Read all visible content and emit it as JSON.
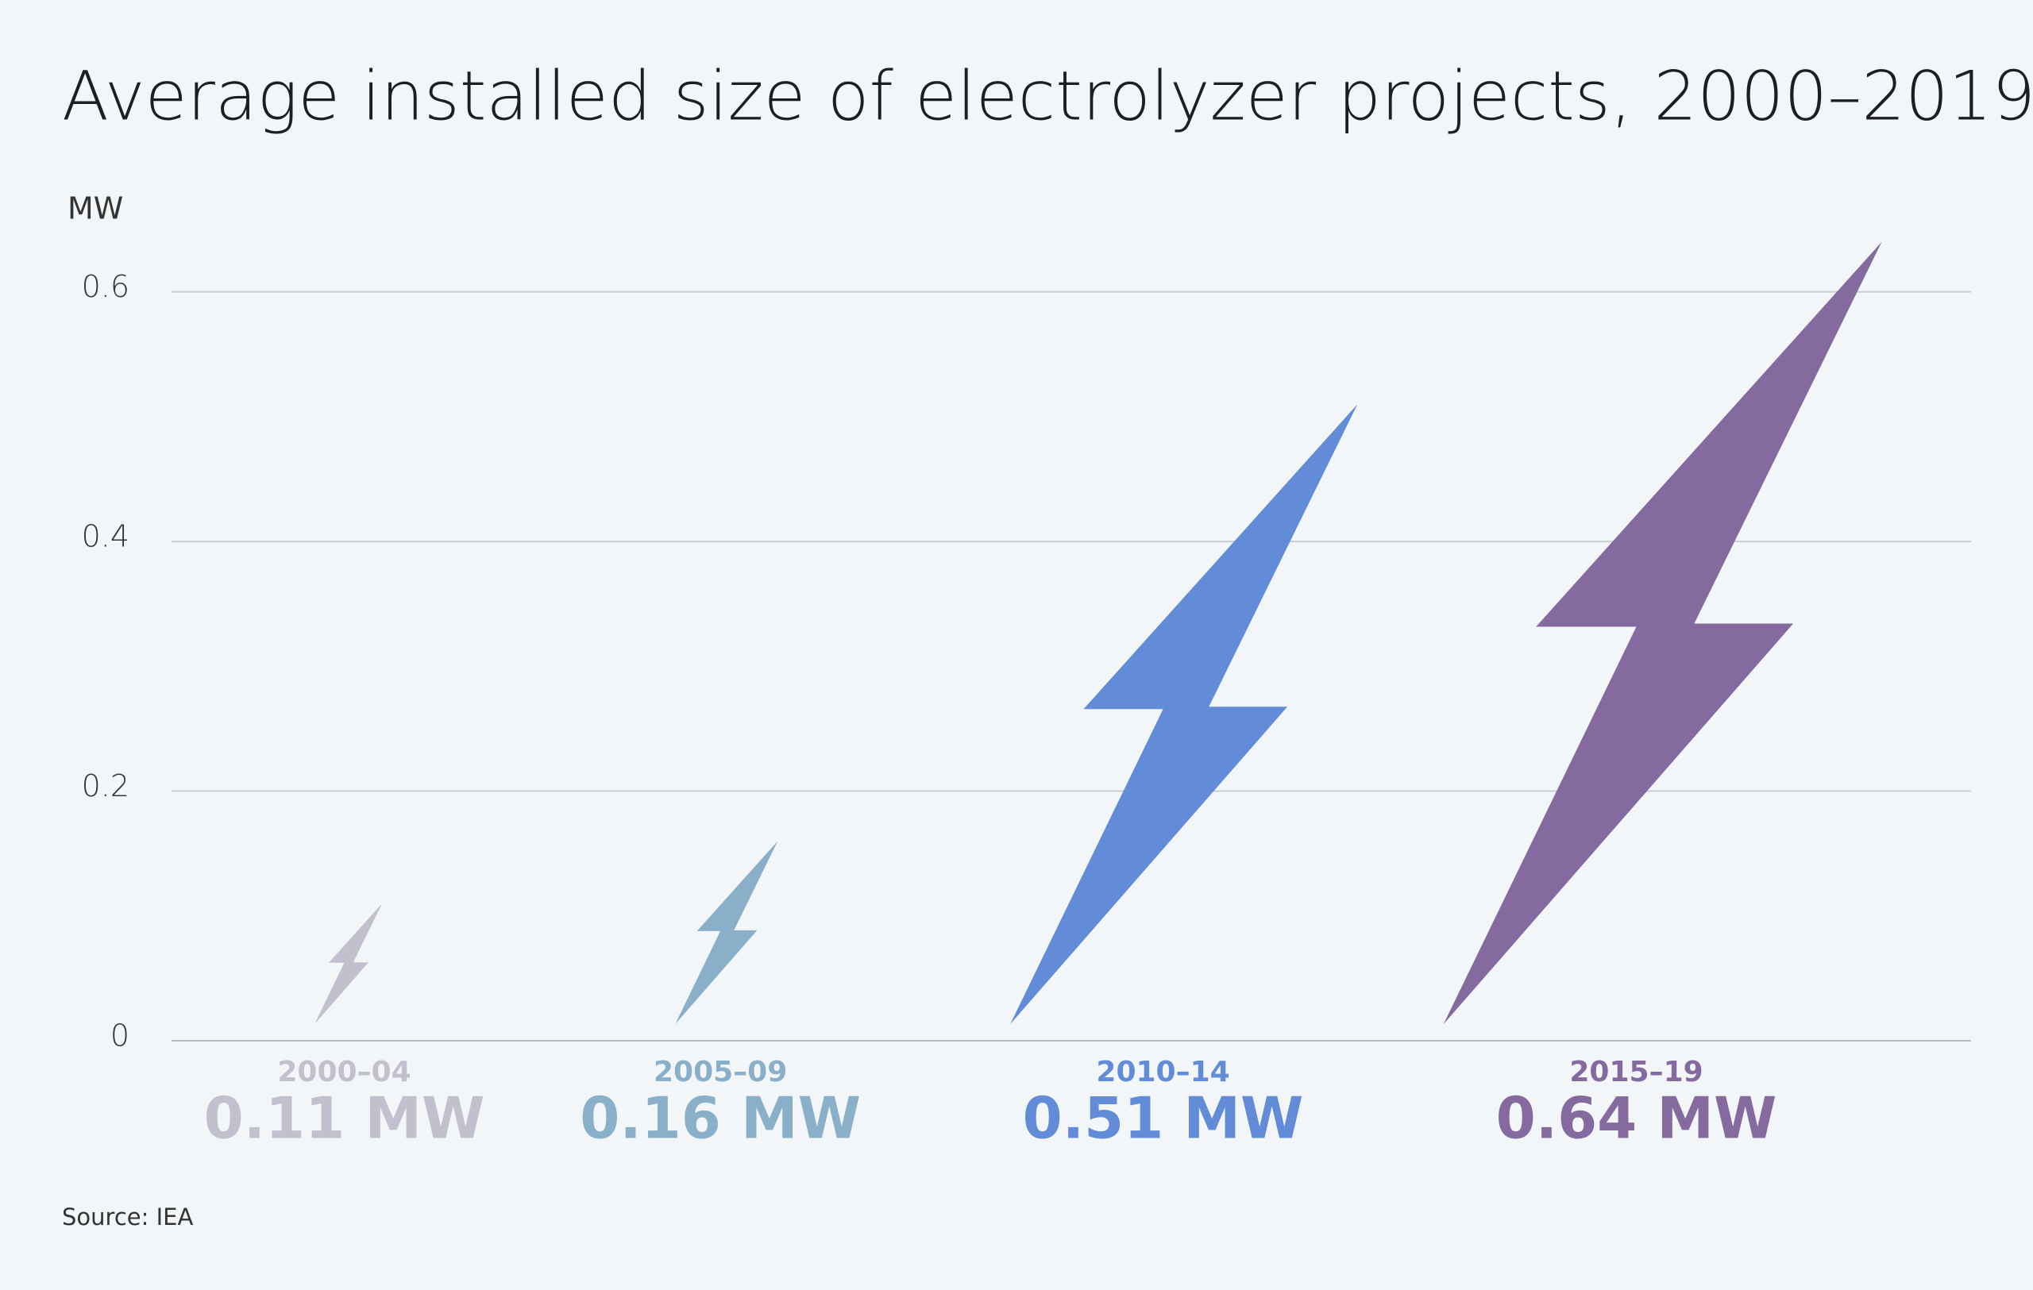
{
  "chart_data": {
    "type": "pictogram",
    "title": "Average installed size of electrolyzer projects, 2000–2019",
    "y_label": "MW",
    "categories": [
      "2000–04",
      "2005–09",
      "2010–14",
      "2015–19"
    ],
    "values": [
      0.11,
      0.16,
      0.51,
      0.64
    ],
    "value_labels": [
      "0.11 MW",
      "0.16 MW",
      "0.51 MW",
      "0.64 MW"
    ],
    "colors": [
      "#c2c0cd",
      "#8aafc9",
      "#628cd7",
      "#856a9f"
    ],
    "ylim": [
      0,
      0.65
    ],
    "yticks": [
      0,
      0.2,
      0.4,
      0.6
    ],
    "grid": true,
    "source": "Source: IEA"
  }
}
